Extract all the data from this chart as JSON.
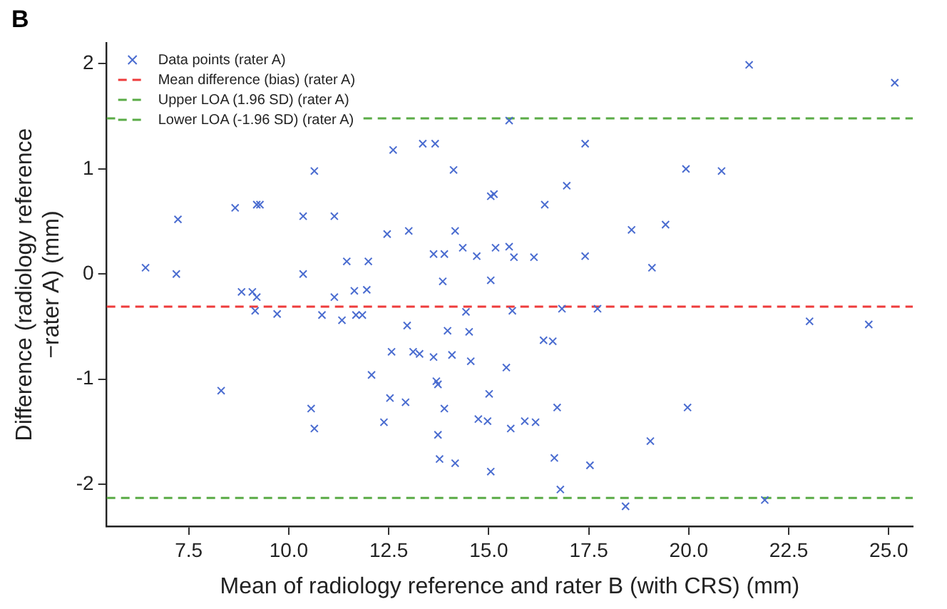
{
  "chart_data": {
    "type": "scatter",
    "xlabel": "Mean of radiology reference and rater B (with CRS) (mm)",
    "ylabel": "Difference (radiology reference\n−rater A) (mm)",
    "annotations": [
      "B"
    ],
    "xlim": [
      5.45,
      25.6
    ],
    "xticks": [
      {
        "value": 7.5,
        "label": "7.5"
      },
      {
        "value": 10,
        "label": "10.0"
      },
      {
        "value": 12.5,
        "label": "12.5"
      },
      {
        "value": 15,
        "label": "15.0"
      },
      {
        "value": 17.5,
        "label": "17.5"
      },
      {
        "value": 20,
        "label": "20.0"
      },
      {
        "value": 22.5,
        "label": "22.5"
      },
      {
        "value": 25,
        "label": "25.0"
      }
    ],
    "ylim": [
      -2.4,
      2.2
    ],
    "yticks": [
      -2,
      -1,
      0,
      1,
      2
    ],
    "grid": false,
    "legend": "top left",
    "marker": "cross",
    "series": [
      {
        "name": "Data points (rater A)",
        "color": "#4a6cd0",
        "x": [
          6.42,
          7.19,
          7.23,
          8.66,
          9.2,
          9.28,
          10.64,
          10.36,
          11.14,
          11.45,
          11.99,
          10.36,
          12.46,
          13.0,
          12.61,
          13.35,
          13.66,
          14.12,
          14.16,
          13.62,
          13.89,
          14.35,
          14.7,
          15.05,
          15.13,
          15.17,
          15.51,
          15.05,
          13.85,
          15.51,
          21.51,
          25.15,
          17.41,
          19.93,
          20.82,
          16.95,
          16.4,
          18.57,
          19.42,
          15.63,
          16.13,
          17.41,
          19.08,
          8.82,
          9.09,
          9.2,
          9.16,
          9.71,
          11.14,
          11.64,
          11.95,
          10.83,
          11.33,
          11.68,
          11.84,
          12.96,
          14.43,
          13.97,
          14.51,
          12.57,
          13.11,
          13.27,
          13.62,
          14.08,
          14.55,
          15.44,
          12.07,
          8.31,
          13.69,
          13.73,
          12.53,
          12.92,
          10.56,
          15.01,
          13.89,
          10.64,
          12.38,
          14.74,
          14.97,
          15.55,
          13.73,
          13.77,
          14.16,
          15.05,
          15.59,
          16.83,
          17.72,
          23.02,
          24.5,
          16.37,
          16.6,
          16.71,
          19.97,
          15.9,
          16.17,
          19.04,
          16.64,
          17.53,
          16.79,
          18.42,
          21.9
        ],
        "values": [
          0.06,
          0.0,
          0.52,
          0.63,
          0.66,
          0.66,
          0.98,
          0.55,
          0.55,
          0.12,
          0.12,
          0.0,
          0.38,
          0.41,
          1.18,
          1.24,
          1.24,
          0.99,
          0.41,
          0.19,
          0.19,
          0.25,
          0.17,
          0.74,
          0.76,
          0.25,
          0.26,
          -0.06,
          -0.07,
          1.46,
          1.99,
          1.82,
          1.24,
          1.0,
          0.98,
          0.84,
          0.66,
          0.42,
          0.47,
          0.16,
          0.16,
          0.17,
          0.06,
          -0.17,
          -0.17,
          -0.22,
          -0.35,
          -0.38,
          -0.22,
          -0.16,
          -0.15,
          -0.39,
          -0.44,
          -0.39,
          -0.39,
          -0.49,
          -0.36,
          -0.54,
          -0.55,
          -0.74,
          -0.74,
          -0.76,
          -0.79,
          -0.77,
          -0.83,
          -0.89,
          -0.96,
          -1.11,
          -1.02,
          -1.05,
          -1.18,
          -1.22,
          -1.28,
          -1.14,
          -1.28,
          -1.47,
          -1.41,
          -1.38,
          -1.4,
          -1.47,
          -1.53,
          -1.76,
          -1.8,
          -1.88,
          -0.35,
          -0.33,
          -0.33,
          -0.45,
          -0.48,
          -0.63,
          -0.64,
          -1.27,
          -1.27,
          -1.4,
          -1.41,
          -1.59,
          -1.75,
          -1.82,
          -2.05,
          -2.21,
          -2.15
        ]
      }
    ],
    "ref_lines": [
      {
        "axis": "y",
        "value": -0.31,
        "label": "Mean difference (bias) (rater A)",
        "color": "#ee3b3b",
        "line_style": "dashed"
      },
      {
        "axis": "y",
        "value": 1.48,
        "label": "Upper LOA (1.96 SD) (rater A)",
        "color": "#5aab46",
        "line_style": "dashed"
      },
      {
        "axis": "y",
        "value": -2.13,
        "label": "Lower LOA (-1.96 SD) (rater A)",
        "color": "#5aab46",
        "line_style": "dashed"
      }
    ]
  }
}
